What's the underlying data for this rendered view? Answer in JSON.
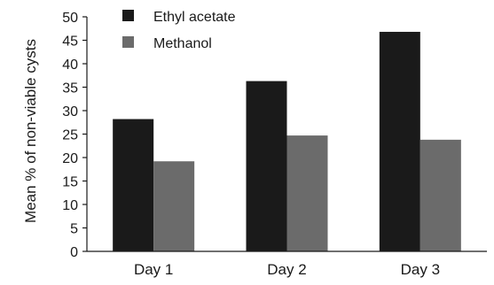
{
  "chart_data": {
    "type": "bar",
    "title": "",
    "xlabel": "",
    "ylabel": "Mean % of non-viable cysts",
    "categories": [
      "Day 1",
      "Day 2",
      "Day 3"
    ],
    "series": [
      {
        "name": "Ethyl acetate",
        "values": [
          28.2,
          36.3,
          46.8
        ],
        "color": "#1a1a1a"
      },
      {
        "name": "Methanol",
        "values": [
          19.2,
          24.7,
          23.8
        ],
        "color": "#6b6b6b"
      }
    ],
    "ylim": [
      0,
      50
    ],
    "yticks": [
      0,
      5,
      10,
      15,
      20,
      25,
      30,
      35,
      40,
      45,
      50
    ],
    "grid": false,
    "legend": "top-left"
  }
}
